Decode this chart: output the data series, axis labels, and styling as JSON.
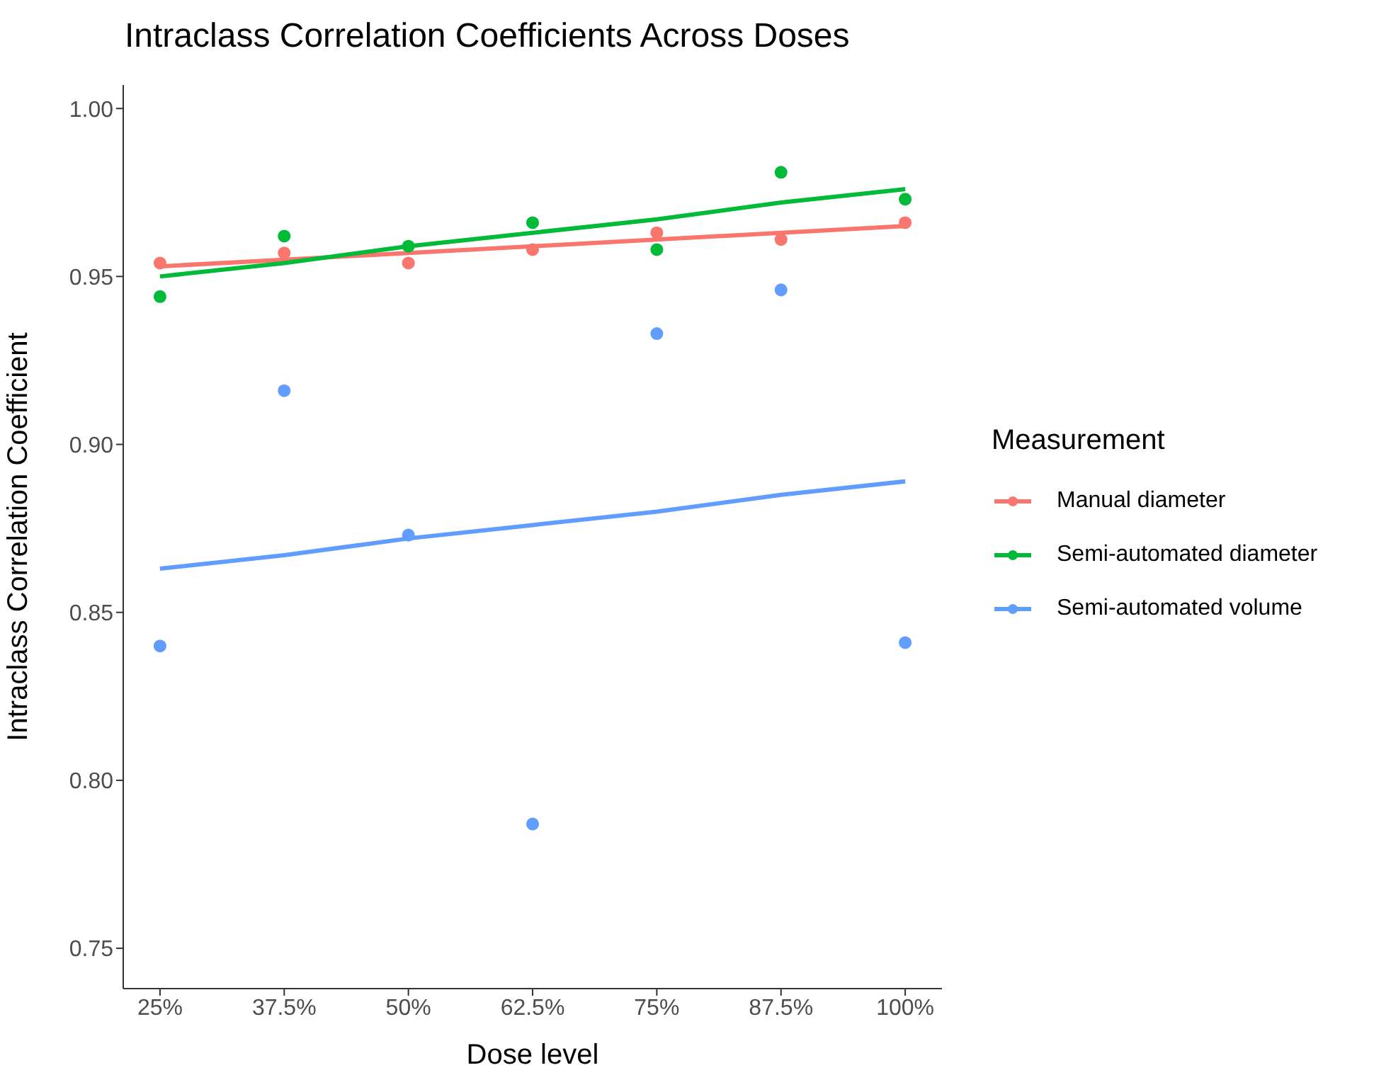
{
  "chart_data": {
    "type": "scatter",
    "title": "Intraclass Correlation Coefficients Across Doses",
    "xlabel": "Dose level",
    "ylabel": "Intraclass Correlation Coefficient",
    "legend_title": "Measurement",
    "x": [
      25,
      37.5,
      50,
      62.5,
      75,
      87.5,
      100
    ],
    "xlim": [
      21.3,
      103.7
    ],
    "xticks": [
      {
        "value": 25,
        "label": "25%"
      },
      {
        "value": 37.5,
        "label": "37.5%"
      },
      {
        "value": 50,
        "label": "50%"
      },
      {
        "value": 62.5,
        "label": "62.5%"
      },
      {
        "value": 75,
        "label": "75%"
      },
      {
        "value": 87.5,
        "label": "87.5%"
      },
      {
        "value": 100,
        "label": "100%"
      }
    ],
    "ylim": [
      0.738,
      1.007
    ],
    "yticks": [
      {
        "value": 0.75,
        "label": "0.75"
      },
      {
        "value": 0.8,
        "label": "0.80"
      },
      {
        "value": 0.85,
        "label": "0.85"
      },
      {
        "value": 0.9,
        "label": "0.90"
      },
      {
        "value": 0.95,
        "label": "0.95"
      },
      {
        "value": 1,
        "label": "1.00"
      }
    ],
    "grid": false,
    "legend": "right",
    "marker": "circle",
    "series": [
      {
        "name": "Manual diameter",
        "color": "#f8766d",
        "values": [
          0.954,
          0.957,
          0.954,
          0.958,
          0.963,
          0.961,
          0.966
        ]
      },
      {
        "name": "Semi-automated diameter",
        "color": "#00ba38",
        "values": [
          0.944,
          0.962,
          0.959,
          0.966,
          0.958,
          0.981,
          0.973
        ]
      },
      {
        "name": "Semi-automated volume",
        "color": "#619cff",
        "values": [
          0.84,
          0.916,
          0.873,
          0.787,
          0.933,
          0.946,
          0.841
        ]
      },
      {
        "type": "line",
        "color": "#f8766d",
        "values": [
          0.953,
          0.955,
          0.957,
          0.959,
          0.961,
          0.963,
          0.965
        ],
        "line_style": "solid",
        "marker": "none"
      },
      {
        "type": "line",
        "color": "#00ba38",
        "values": [
          0.95,
          0.954,
          0.959,
          0.963,
          0.967,
          0.972,
          0.976
        ],
        "line_style": "solid",
        "marker": "none"
      },
      {
        "type": "line",
        "color": "#619cff",
        "values": [
          0.863,
          0.867,
          0.872,
          0.876,
          0.88,
          0.885,
          0.889
        ],
        "line_style": "solid",
        "marker": "none"
      }
    ]
  }
}
